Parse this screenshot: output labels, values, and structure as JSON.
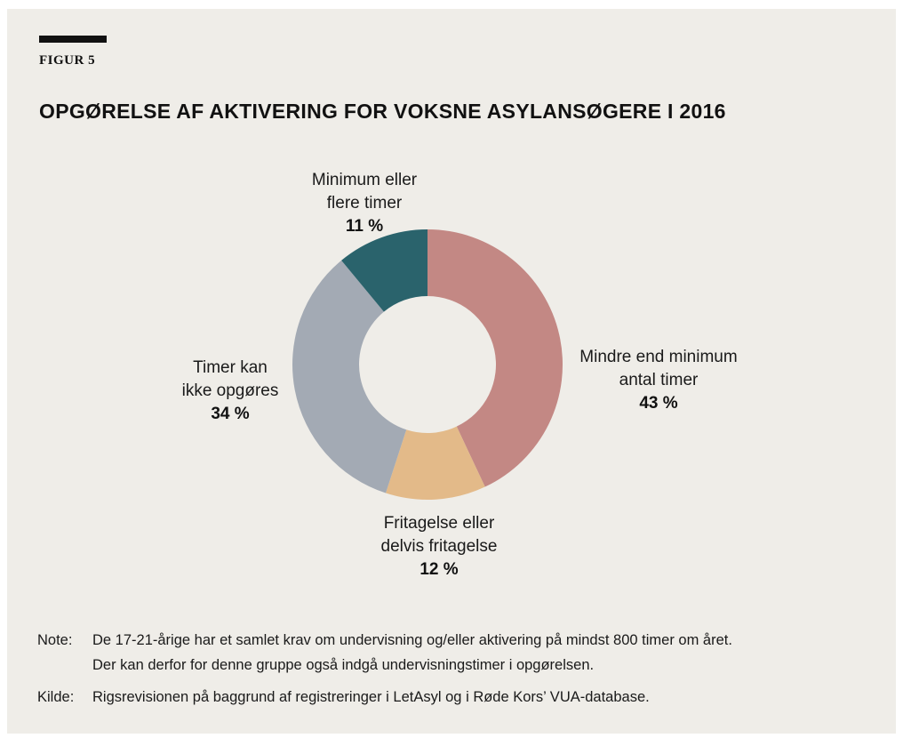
{
  "figure_label": "FIGUR 5",
  "chart_data": {
    "type": "pie",
    "title": "OPGØRELSE AF AKTIVERING FOR VOKSNE ASYLANSØGERE I 2016",
    "slices": [
      {
        "label_lines": [
          "Mindre end minimum",
          "antal timer"
        ],
        "value": 43,
        "value_label": "43 %",
        "color": "#c38884"
      },
      {
        "label_lines": [
          "Fritagelse eller",
          "delvis fritagelse"
        ],
        "value": 12,
        "value_label": "12 %",
        "color": "#e3ba89"
      },
      {
        "label_lines": [
          "Timer kan",
          "ikke opgøres"
        ],
        "value": 34,
        "value_label": "34 %",
        "color": "#a3aab4"
      },
      {
        "label_lines": [
          "Minimum eller",
          "flere timer"
        ],
        "value": 11,
        "value_label": "11 %",
        "color": "#2a636c"
      }
    ]
  },
  "note": {
    "key": "Note:",
    "lines": [
      "De 17-21-årige har et samlet krav om undervisning og/eller aktivering på mindst 800 timer om året.",
      "Der kan derfor for denne gruppe også indgå undervisningstimer i opgørelsen."
    ]
  },
  "source": {
    "key": "Kilde:",
    "text": "Rigsrevisionen på baggrund af registreringer i LetAsyl og i Røde Kors’ VUA-database."
  }
}
